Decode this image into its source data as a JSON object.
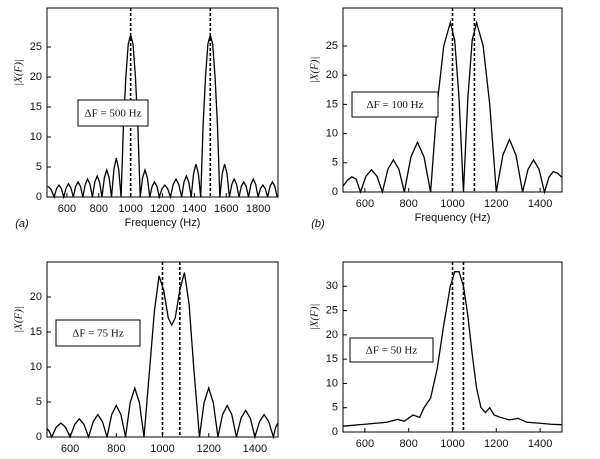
{
  "chart_data": [
    {
      "type": "line",
      "label": "(a)",
      "x_label": "Frequency (Hz)",
      "y_label": "|X(F)|",
      "annotation": "ΔF = 500 Hz",
      "color": "#000000",
      "xlim": [
        475,
        1925
      ],
      "ylim": [
        0,
        31.5
      ],
      "xticks": [
        600,
        800,
        1000,
        1200,
        1400,
        1600,
        1800
      ],
      "yticks": [
        0,
        5,
        10,
        15,
        20,
        25
      ],
      "vlines": [
        1000,
        1500
      ],
      "x": [
        480,
        500,
        520,
        535,
        550,
        565,
        580,
        595,
        610,
        625,
        640,
        655,
        670,
        685,
        700,
        715,
        730,
        745,
        760,
        775,
        790,
        805,
        820,
        835,
        850,
        865,
        880,
        895,
        910,
        925,
        940,
        955,
        970,
        985,
        1000,
        1015,
        1030,
        1045,
        1060,
        1075,
        1090,
        1105,
        1120,
        1135,
        1150,
        1165,
        1180,
        1197,
        1215,
        1232,
        1250,
        1267,
        1285,
        1302,
        1320,
        1335,
        1350,
        1365,
        1380,
        1395,
        1410,
        1425,
        1440,
        1455,
        1470,
        1485,
        1500,
        1515,
        1530,
        1545,
        1560,
        1575,
        1590,
        1605,
        1620,
        1635,
        1650,
        1665,
        1680,
        1695,
        1710,
        1725,
        1740,
        1755,
        1770,
        1785,
        1800,
        1815,
        1830,
        1845,
        1860,
        1875,
        1890,
        1905,
        1920
      ],
      "values": [
        1.8,
        1.3,
        0,
        1.4,
        2,
        1.4,
        0,
        1.5,
        2.2,
        1.5,
        0,
        1.8,
        2.5,
        1.8,
        0,
        2.1,
        3,
        2.1,
        0,
        2.5,
        3.5,
        2.5,
        0,
        3.2,
        4.5,
        3.2,
        0,
        4.6,
        6.5,
        4.6,
        0,
        12,
        20,
        25.5,
        27,
        25.5,
        20,
        12,
        0,
        3.2,
        4.5,
        3.2,
        0,
        1.8,
        2.5,
        1.8,
        0,
        1.4,
        2,
        1.4,
        0,
        2.1,
        3,
        2.1,
        0,
        2.5,
        3.5,
        2.5,
        0,
        3.9,
        5.5,
        3.9,
        0,
        12,
        20,
        25.5,
        27,
        25.5,
        20,
        12,
        0,
        3.9,
        5.5,
        3.9,
        0,
        2.1,
        3,
        2.1,
        0,
        1.8,
        2.5,
        1.8,
        0,
        2.1,
        3,
        2.1,
        0,
        1.4,
        2,
        1.4,
        0,
        1.8,
        2.5,
        1.8,
        0
      ]
    },
    {
      "type": "line",
      "label": "(b)",
      "x_label": "Frequency (Hz)",
      "y_label": "|X(F)|",
      "annotation": "ΔF = 100 Hz",
      "color": "#000000",
      "xlim": [
        500,
        1500
      ],
      "ylim": [
        0,
        31.5
      ],
      "xticks": [
        600,
        800,
        1000,
        1200,
        1400
      ],
      "yticks": [
        0,
        5,
        10,
        15,
        20,
        25
      ],
      "vlines": [
        1000,
        1100
      ],
      "x": [
        500,
        520,
        540,
        560,
        580,
        605,
        630,
        655,
        680,
        705,
        730,
        755,
        780,
        810,
        840,
        870,
        900,
        930,
        960,
        990,
        1010,
        1030,
        1050,
        1070,
        1090,
        1110,
        1140,
        1170,
        1200,
        1230,
        1260,
        1290,
        1320,
        1345,
        1370,
        1395,
        1420,
        1440,
        1460,
        1480,
        1500
      ],
      "values": [
        1,
        2,
        2.6,
        2.2,
        0,
        2.7,
        3.8,
        2.7,
        0,
        3.9,
        5.5,
        3.9,
        0,
        6,
        8.5,
        6,
        0,
        15,
        25,
        29,
        26,
        16,
        0,
        16,
        26,
        29,
        25,
        15,
        0,
        6.3,
        9,
        6.3,
        0,
        3.9,
        5.5,
        3.9,
        0,
        2.5,
        3.5,
        3.2,
        2.5
      ]
    },
    {
      "type": "line",
      "y_label": "|X(F)|",
      "annotation": "ΔF = 75 Hz",
      "color": "#000000",
      "xlim": [
        500,
        1500
      ],
      "ylim": [
        0,
        25
      ],
      "xticks": [
        600,
        800,
        1000,
        1200,
        1400
      ],
      "yticks": [
        0,
        5,
        10,
        15,
        20
      ],
      "vlines": [
        1000,
        1075
      ],
      "x": [
        500,
        510,
        520,
        540,
        560,
        580,
        600,
        620,
        640,
        660,
        680,
        700,
        720,
        740,
        760,
        780,
        800,
        820,
        840,
        860,
        880,
        900,
        920,
        945,
        965,
        985,
        1005,
        1025,
        1040,
        1055,
        1075,
        1095,
        1115,
        1135,
        1160,
        1180,
        1200,
        1220,
        1240,
        1260,
        1280,
        1300,
        1320,
        1340,
        1360,
        1380,
        1400,
        1420,
        1440,
        1460,
        1480,
        1490,
        1500
      ],
      "values": [
        1.2,
        0.8,
        0,
        1.4,
        2,
        1.4,
        0,
        1.8,
        2.6,
        1.8,
        0,
        2.2,
        3.2,
        2.2,
        0,
        3.2,
        4.5,
        3.2,
        0,
        4.9,
        7,
        4.9,
        0,
        10,
        18,
        23,
        21,
        17,
        16,
        17,
        21,
        23.5,
        19,
        10,
        0,
        4.9,
        7,
        4.9,
        0,
        3.2,
        4.5,
        3.2,
        0,
        2.7,
        3.8,
        2.7,
        0,
        2.2,
        3.2,
        2.2,
        0,
        1.4,
        2
      ]
    },
    {
      "type": "line",
      "y_label": "|X(F)|",
      "annotation": "ΔF = 50 Hz",
      "color": "#000000",
      "xlim": [
        500,
        1500
      ],
      "ylim": [
        0,
        35
      ],
      "xticks": [
        600,
        800,
        1000,
        1200,
        1400
      ],
      "yticks": [
        0,
        5,
        10,
        15,
        20,
        25,
        30
      ],
      "vlines": [
        1000,
        1050
      ],
      "x": [
        500,
        550,
        600,
        650,
        700,
        750,
        780,
        820,
        850,
        870,
        900,
        930,
        960,
        990,
        1010,
        1030,
        1050,
        1070,
        1090,
        1110,
        1130,
        1150,
        1170,
        1190,
        1220,
        1260,
        1300,
        1340,
        1400,
        1450,
        1500
      ],
      "values": [
        1.2,
        1.4,
        1.6,
        1.8,
        2,
        2.6,
        2.2,
        3.5,
        3,
        5,
        7,
        13,
        22,
        30,
        33,
        33,
        30,
        24,
        16,
        9,
        5,
        4,
        5,
        3.5,
        3,
        2.5,
        2.8,
        2,
        1.8,
        1.6,
        1.5
      ]
    }
  ]
}
